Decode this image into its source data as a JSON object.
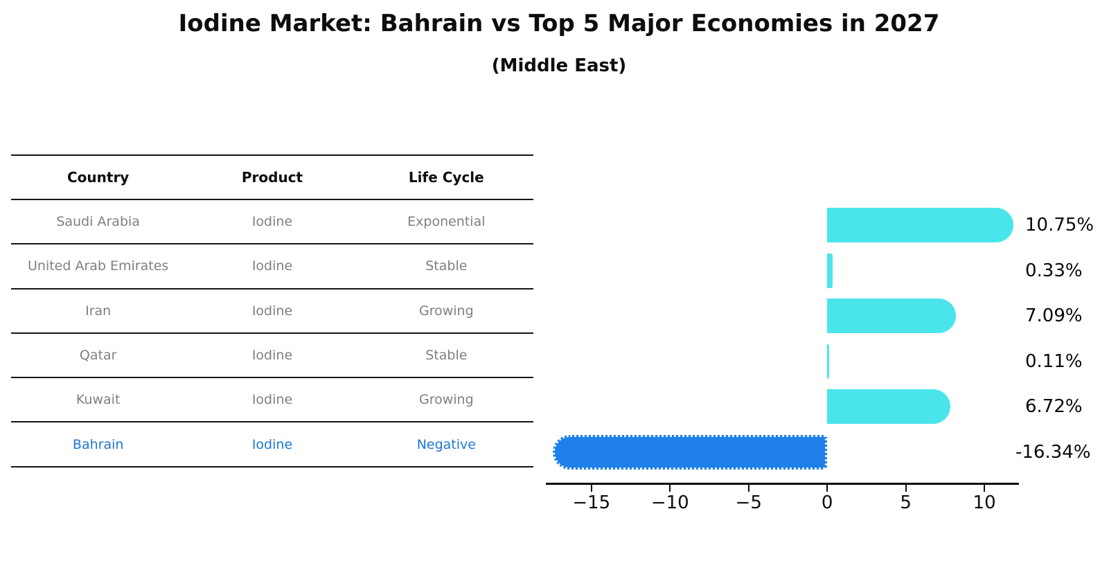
{
  "title": "Iodine Market: Bahrain vs Top 5 Major Economies in 2027",
  "subtitle": "(Middle East)",
  "table": {
    "headers": [
      "Country",
      "Product",
      "Life Cycle"
    ],
    "rows": [
      {
        "country": "Saudi Arabia",
        "product": "Iodine",
        "life_cycle": "Exponential",
        "highlight": false
      },
      {
        "country": "United Arab Emirates",
        "product": "Iodine",
        "life_cycle": "Stable",
        "highlight": false
      },
      {
        "country": "Iran",
        "product": "Iodine",
        "life_cycle": "Growing",
        "highlight": false
      },
      {
        "country": "Qatar",
        "product": "Iodine",
        "life_cycle": "Stable",
        "highlight": false
      },
      {
        "country": "Kuwait",
        "product": "Iodine",
        "life_cycle": "Growing",
        "highlight": false
      },
      {
        "country": "Bahrain",
        "product": "Iodine",
        "life_cycle": "Negative",
        "highlight": true
      }
    ]
  },
  "chart_data": {
    "type": "bar",
    "orientation": "horizontal",
    "title": "Iodine Market: Bahrain vs Top 5 Major Economies in 2027",
    "subtitle": "(Middle East)",
    "categories": [
      "Saudi Arabia",
      "United Arab Emirates",
      "Iran",
      "Qatar",
      "Kuwait",
      "Bahrain"
    ],
    "values": [
      10.75,
      0.33,
      7.09,
      0.11,
      6.72,
      -16.34
    ],
    "value_labels": [
      "10.75%",
      "0.33%",
      "7.09%",
      "0.11%",
      "6.72%",
      "-16.34%"
    ],
    "x_ticks": [
      -15,
      -10,
      -5,
      0,
      5,
      10
    ],
    "x_tick_labels": [
      "−15",
      "−10",
      "−5",
      "0",
      "5",
      "10"
    ],
    "xlim": [
      -17.9,
      12.2
    ],
    "grid": false,
    "legend": false,
    "highlight_index": 5
  },
  "colors": {
    "bar_positive": "#4ae5eb",
    "bar_negative": "#1e80e8",
    "highlight_text": "#1f78d1",
    "table_text": "#7f7f7f",
    "axis_text": "#0d0d0d"
  }
}
